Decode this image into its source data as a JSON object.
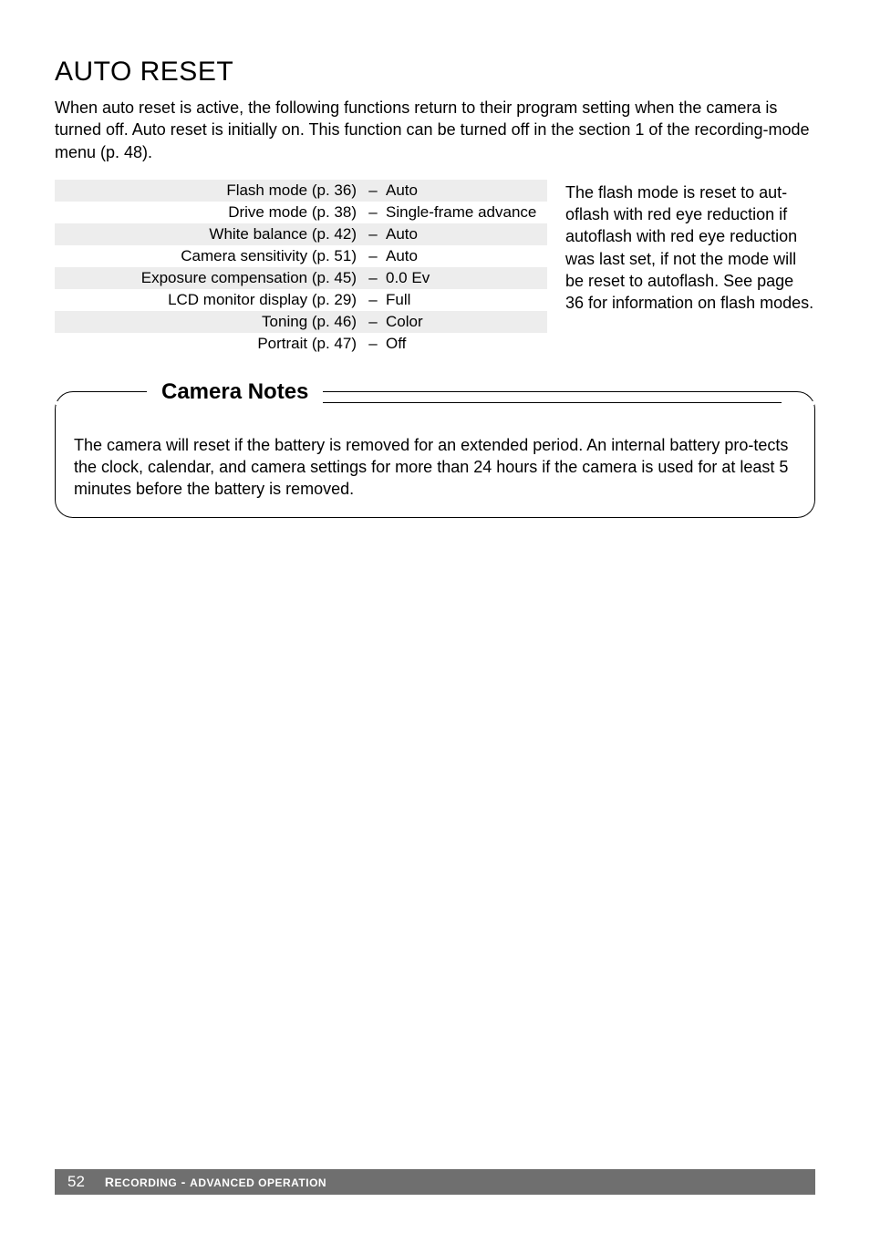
{
  "title": "AUTO RESET",
  "intro": "When auto reset is active, the following functions return to their program setting when the camera is turned off. Auto reset is initially on. This function can be turned off in the section 1 of the recording-mode menu (p. 48).",
  "settings": [
    {
      "label": "Flash mode (p. 36)",
      "value": "Auto"
    },
    {
      "label": "Drive mode (p. 38)",
      "value": "Single-frame advance"
    },
    {
      "label": "White balance (p. 42)",
      "value": "Auto"
    },
    {
      "label": "Camera sensitivity (p. 51)",
      "value": "Auto"
    },
    {
      "label": "Exposure compensation (p. 45)",
      "value": "0.0 Ev"
    },
    {
      "label": "LCD monitor display (p. 29)",
      "value": "Full"
    },
    {
      "label": "Toning (p. 46)",
      "value": "Color"
    },
    {
      "label": "Portrait (p. 47)",
      "value": "Off"
    }
  ],
  "side_text": "The flash mode is reset to aut-oflash with red eye reduction if autoflash with red eye reduction was last set, if not the mode will be reset to autoflash. See page 36 for information on flash modes.",
  "notes": {
    "heading": "Camera Notes",
    "body": "The camera will reset if the battery is removed for an extended period. An internal battery pro-tects the clock, calendar, and camera settings for more than 24 hours if the camera is used for at least 5 minutes before the battery is removed."
  },
  "footer": {
    "page_number": "52",
    "section": "Recording - advanced operation"
  },
  "colors": {
    "row_shade": "#ededed",
    "footer_bg": "#6f6f6f",
    "text": "#000000",
    "bg": "#ffffff"
  }
}
